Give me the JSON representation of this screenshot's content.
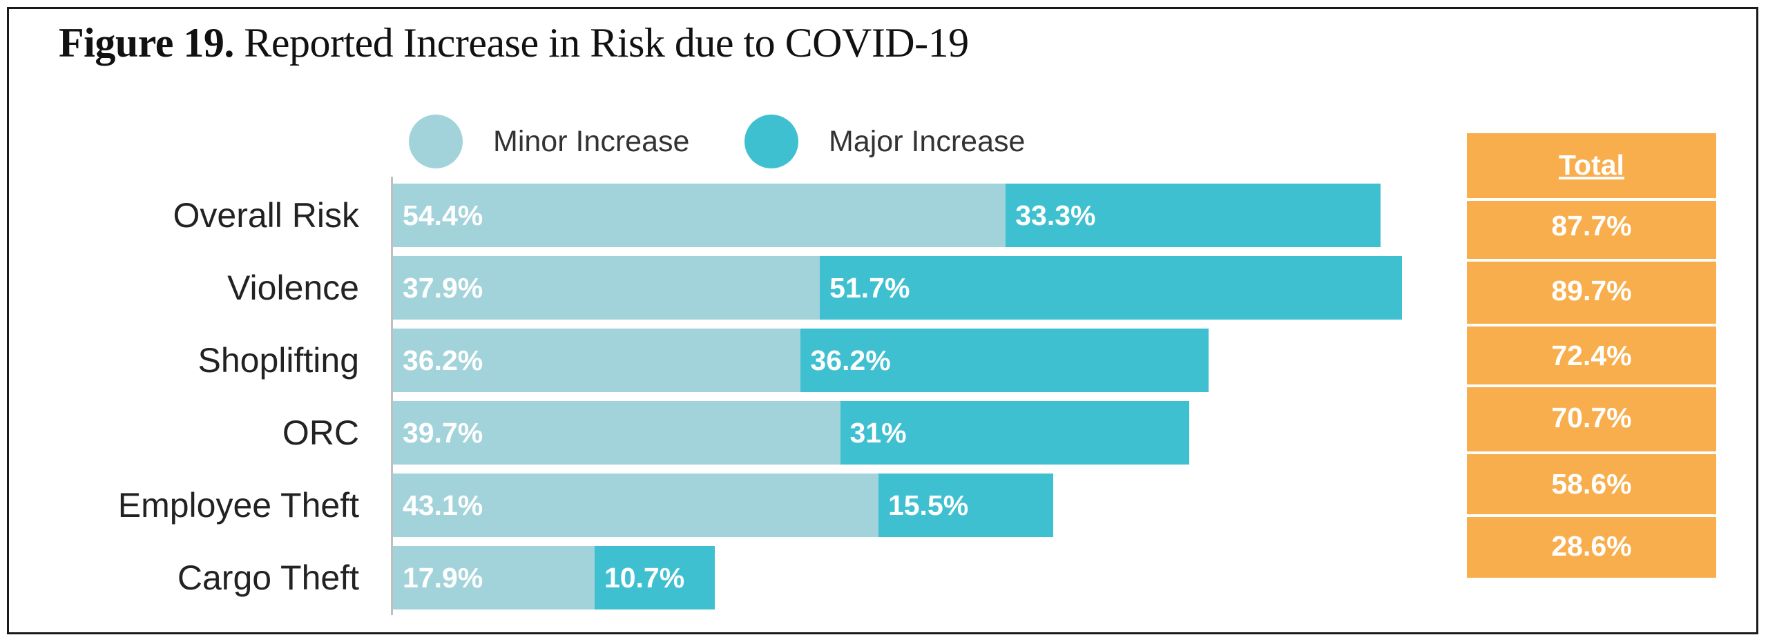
{
  "title": {
    "figure_label": "Figure 19.",
    "text": "Reported Increase in Risk due to COVID-19"
  },
  "chart_data": {
    "type": "bar",
    "orientation": "horizontal",
    "stacked": true,
    "title": "Figure 19. Reported Increase in Risk due to COVID-19",
    "categories": [
      "Overall Risk",
      "Violence",
      "Shoplifting",
      "ORC",
      "Employee Theft",
      "Cargo Theft"
    ],
    "series": [
      {
        "name": "Minor Increase",
        "color": "#a3d3da",
        "values": [
          54.4,
          37.9,
          36.2,
          39.7,
          43.1,
          17.9
        ],
        "labels": [
          "54.4%",
          "37.9%",
          "36.2%",
          "39.7%",
          "43.1%",
          "17.9%"
        ]
      },
      {
        "name": "Major Increase",
        "color": "#3fc0d0",
        "values": [
          33.3,
          51.7,
          36.2,
          31,
          15.5,
          10.7
        ],
        "labels": [
          "33.3%",
          "51.7%",
          "36.2%",
          "31%",
          "15.5%",
          "10.7%"
        ]
      }
    ],
    "totals": {
      "header": "Total",
      "color": "#f8ae4c",
      "labels": [
        "87.7%",
        "89.7%",
        "72.4%",
        "70.7%",
        "58.6%",
        "28.6%"
      ]
    },
    "xlim": [
      0,
      100
    ],
    "grid": false,
    "legend": "top"
  }
}
